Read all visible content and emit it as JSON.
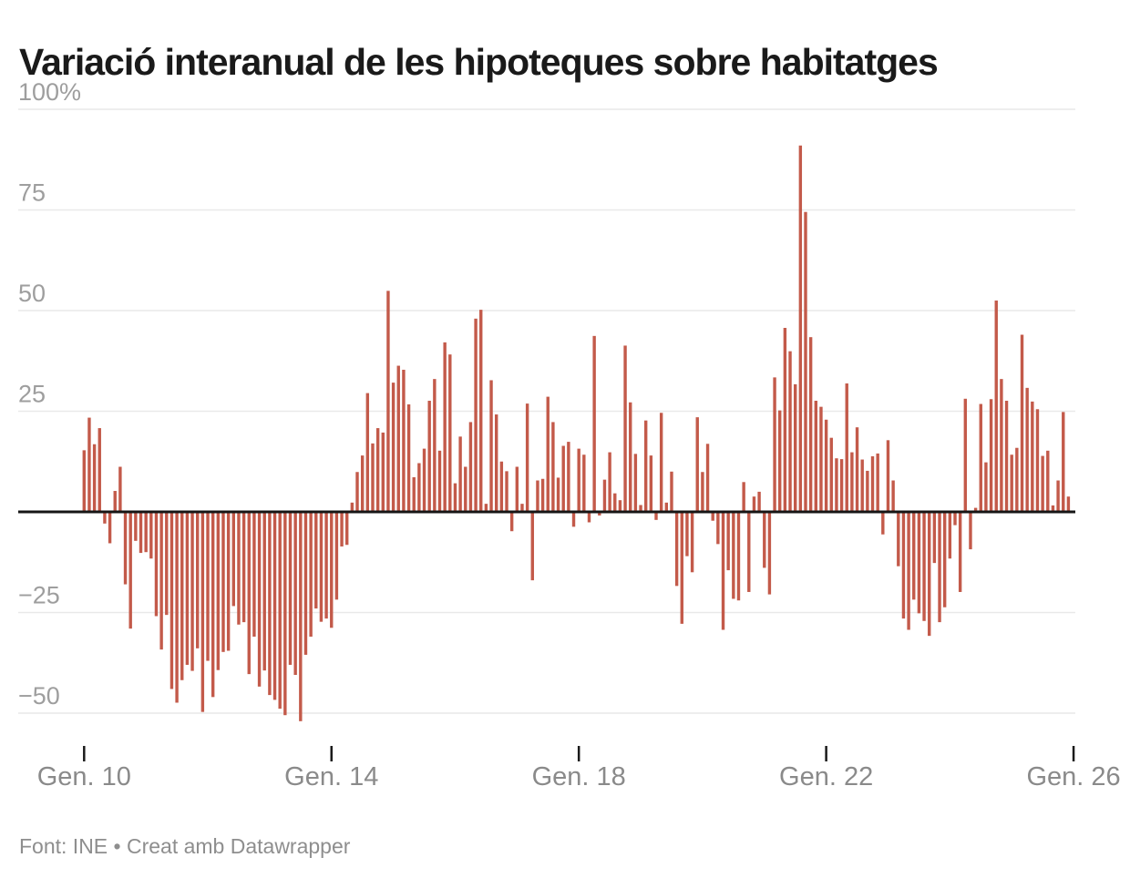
{
  "header": {
    "title": "Variació interanual de les hipoteques sobre habitatges"
  },
  "footer": {
    "text": "Font: INE • Creat amb Datawrapper"
  },
  "colors": {
    "bar": "#c35a4a",
    "grid": "#e9e9e9",
    "zero_line": "#161616",
    "tick_mark": "#1a1a1a",
    "y_label_text": "#9e9e9e",
    "x_label_text": "#8a8a8a",
    "title_text": "#1a1a1a",
    "footer_text": "#8e8e8e"
  },
  "chart_data": {
    "type": "bar",
    "title": "Variació interanual de les hipoteques sobre habitatges",
    "unit": "%",
    "x_start": "2010-01",
    "x_frequency": "monthly",
    "grid": true,
    "ylim": [
      -56,
      102
    ],
    "y_axis_ticks": [
      {
        "v": 100,
        "label": "100%"
      },
      {
        "v": 75,
        "label": "75"
      },
      {
        "v": 50,
        "label": "50"
      },
      {
        "v": 25,
        "label": "25"
      },
      {
        "v": -25,
        "label": "−25"
      },
      {
        "v": -50,
        "label": "−50"
      }
    ],
    "x_axis_ticks": [
      {
        "m": 0,
        "label": "Gen. 10"
      },
      {
        "m": 48,
        "label": "Gen. 14"
      },
      {
        "m": 96,
        "label": "Gen. 18"
      },
      {
        "m": 144,
        "label": "Gen. 22"
      },
      {
        "m": 192,
        "label": "Gen. 26"
      }
    ],
    "values": [
      15.3,
      23.4,
      16.8,
      20.8,
      -2.9,
      -7.8,
      5.2,
      11.2,
      -18.0,
      -29.0,
      -7.2,
      -10.2,
      -10.0,
      -11.6,
      -25.9,
      -34.2,
      -25.6,
      -44.0,
      -47.4,
      -41.8,
      -38.0,
      -39.5,
      -33.9,
      -49.7,
      -37.0,
      -46.0,
      -39.3,
      -34.8,
      -34.5,
      -23.4,
      -28.0,
      -27.4,
      -40.3,
      -31.0,
      -43.4,
      -39.4,
      -45.5,
      -46.7,
      -48.9,
      -50.5,
      -38.0,
      -40.5,
      -52.0,
      -35.5,
      -31.0,
      -24.0,
      -27.3,
      -26.5,
      -28.8,
      -21.8,
      -8.6,
      -8.2,
      2.3,
      9.9,
      14.0,
      29.5,
      17.0,
      20.8,
      19.7,
      54.9,
      32.1,
      36.3,
      35.3,
      26.7,
      8.6,
      12.1,
      15.7,
      27.6,
      33.0,
      15.2,
      42.1,
      39.1,
      7.1,
      18.7,
      11.2,
      22.3,
      48.0,
      50.2,
      2.0,
      32.7,
      24.2,
      12.5,
      10.1,
      -4.8,
      11.2,
      2.0,
      26.9,
      -17.0,
      7.8,
      8.2,
      28.6,
      22.3,
      8.5,
      16.4,
      17.4,
      -3.7,
      15.7,
      14.2,
      -2.6,
      43.7,
      -0.9,
      8.0,
      14.8,
      4.6,
      2.9,
      41.3,
      27.2,
      14.4,
      1.7,
      22.7,
      14.0,
      -2.0,
      24.6,
      2.3,
      10.0,
      -18.4,
      -27.8,
      -11.0,
      -15.0,
      23.5,
      9.9,
      16.9,
      -2.2,
      -8.0,
      -29.3,
      -14.5,
      -21.6,
      -22.0,
      7.4,
      -19.9,
      3.8,
      5.0,
      -13.9,
      -20.5,
      33.4,
      25.2,
      45.7,
      39.9,
      31.7,
      91.0,
      74.5,
      43.4,
      27.6,
      26.1,
      22.9,
      18.4,
      13.3,
      13.1,
      31.9,
      14.8,
      21.0,
      13.0,
      10.2,
      13.8,
      14.5,
      -5.6,
      17.8,
      7.8,
      -13.5,
      -26.5,
      -29.3,
      -21.8,
      -25.2,
      -27.1,
      -30.8,
      -12.7,
      -27.4,
      -23.7,
      -11.6,
      -3.3,
      -19.9,
      28.1,
      -9.3,
      1.0,
      26.8,
      12.3,
      28.0,
      52.5,
      33.0,
      27.6,
      14.2,
      15.9,
      44.0,
      30.8,
      27.4,
      25.5,
      13.9,
      15.2,
      1.6,
      7.8,
      24.8,
      3.8
    ]
  }
}
